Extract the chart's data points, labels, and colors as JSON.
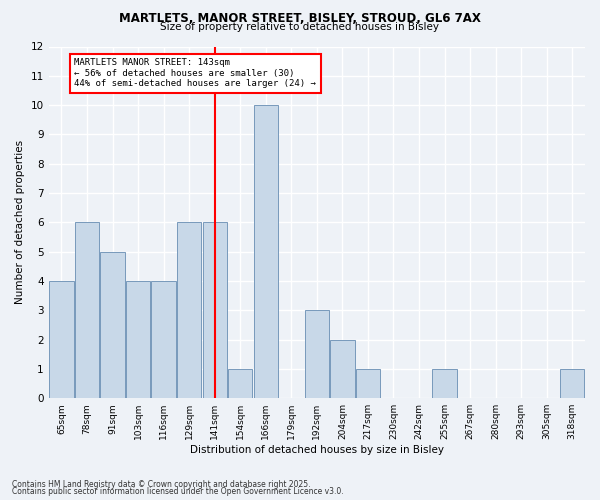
{
  "title1": "MARTLETS, MANOR STREET, BISLEY, STROUD, GL6 7AX",
  "title2": "Size of property relative to detached houses in Bisley",
  "xlabel": "Distribution of detached houses by size in Bisley",
  "ylabel": "Number of detached properties",
  "categories": [
    "65sqm",
    "78sqm",
    "91sqm",
    "103sqm",
    "116sqm",
    "129sqm",
    "141sqm",
    "154sqm",
    "166sqm",
    "179sqm",
    "192sqm",
    "204sqm",
    "217sqm",
    "230sqm",
    "242sqm",
    "255sqm",
    "267sqm",
    "280sqm",
    "293sqm",
    "305sqm",
    "318sqm"
  ],
  "values": [
    4,
    6,
    5,
    4,
    4,
    6,
    6,
    1,
    10,
    0,
    3,
    2,
    1,
    0,
    0,
    1,
    0,
    0,
    0,
    0,
    1
  ],
  "bar_color": "#c8d8e8",
  "bar_edgecolor": "#7799bb",
  "vline_color": "red",
  "vline_x": 6,
  "annotation_text": "MARTLETS MANOR STREET: 143sqm\n← 56% of detached houses are smaller (30)\n44% of semi-detached houses are larger (24) →",
  "annotation_box_color": "white",
  "annotation_box_edgecolor": "red",
  "ylim": [
    0,
    12
  ],
  "yticks": [
    0,
    1,
    2,
    3,
    4,
    5,
    6,
    7,
    8,
    9,
    10,
    11,
    12
  ],
  "footnote1": "Contains HM Land Registry data © Crown copyright and database right 2025.",
  "footnote2": "Contains public sector information licensed under the Open Government Licence v3.0.",
  "background_color": "#eef2f7",
  "grid_color": "white"
}
